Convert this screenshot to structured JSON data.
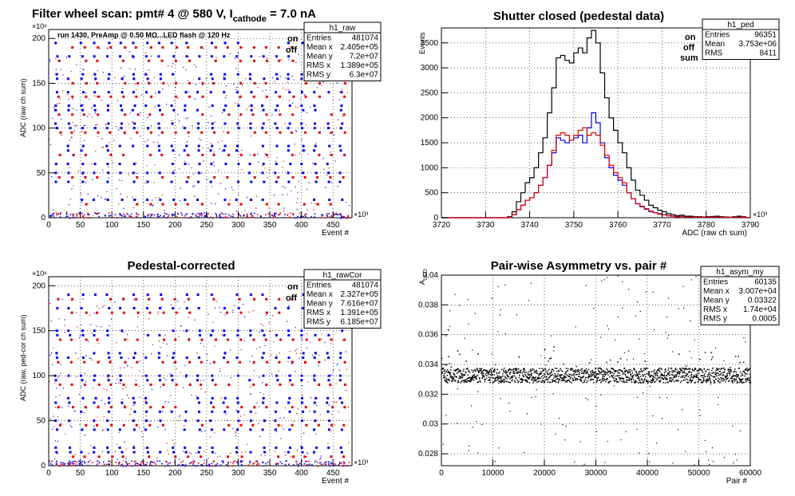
{
  "page_title": "Filter wheel scan: pmt#   4 @   580 V, I",
  "page_title_sub": "cathode",
  "page_title_tail": " = 7.0 nA",
  "colors": {
    "on": "#0000ee",
    "off": "#e00000",
    "sum": "#000000"
  },
  "panels": {
    "raw": {
      "title": "",
      "stats_name": "h1_raw",
      "stats": [
        [
          "Entries",
          "481074"
        ],
        [
          "Mean x",
          "2.405e+05"
        ],
        [
          "Mean y",
          "7.2e+07"
        ],
        [
          "RMS x",
          "1.389e+05"
        ],
        [
          "RMS y",
          "6.3e+07"
        ]
      ],
      "note": "run 1430, PreAmp @ 0.50 MΩ...LED flash @  120 Hz",
      "legend": [
        "on",
        "off"
      ],
      "xlabel": "Event #",
      "ylabel": "ADC (raw ch sum)",
      "x_exp": "×10³",
      "y_exp": "×10⁶"
    },
    "ped": {
      "title": "Shutter closed (pedestal data)",
      "stats_name": "h1_ped",
      "stats": [
        [
          "Entries",
          "96351"
        ],
        [
          "Mean",
          "3.753e+06"
        ],
        [
          "RMS",
          "8411"
        ]
      ],
      "legend": [
        "on",
        "off",
        "sum"
      ],
      "xlabel": "ADC (raw ch sum)",
      "ylabel": "Events",
      "x_exp": "×10³"
    },
    "cor": {
      "title": "Pedestal-corrected",
      "stats_name": "h1_rawCor",
      "stats": [
        [
          "Entries",
          "481074"
        ],
        [
          "Mean x",
          "2.327e+05"
        ],
        [
          "Mean y",
          "7.616e+07"
        ],
        [
          "RMS x",
          "1.391e+05"
        ],
        [
          "RMS y",
          "6.185e+07"
        ]
      ],
      "legend": [
        "on",
        "off"
      ],
      "xlabel": "Event #",
      "ylabel": "ADC (raw, ped-cor ch sum)",
      "x_exp": "×10³",
      "y_exp": "×10⁶"
    },
    "asym": {
      "title": "Pair-wise Asymmetry vs. pair #",
      "stats_name": "h1_asym_my",
      "stats": [
        [
          "Entries",
          "60135"
        ],
        [
          "Mean x",
          "3.007e+04"
        ],
        [
          "Mean y",
          "0.03322"
        ],
        [
          "RMS x",
          "1.74e+04"
        ],
        [
          "RMS y",
          "0.0005"
        ]
      ],
      "xlabel": "Pair #",
      "ylabel": "A",
      "ylabel_sub": "LED"
    }
  },
  "chart_data": [
    {
      "id": "raw",
      "type": "scatter",
      "xlim": [
        0,
        480
      ],
      "ylim": [
        0,
        210
      ],
      "xticks": [
        0,
        50,
        100,
        150,
        200,
        250,
        300,
        350,
        400,
        450
      ],
      "yticks": [
        0,
        50,
        100,
        150,
        200
      ],
      "levels_on": [
        195,
        180,
        160,
        155,
        140,
        125,
        120,
        105,
        100,
        80,
        75,
        60,
        50,
        40,
        20
      ],
      "levels_off": [
        190,
        175,
        150,
        135,
        115,
        95,
        70,
        45,
        15
      ],
      "grid": true
    },
    {
      "id": "ped",
      "type": "line",
      "xlim": [
        3720,
        3790
      ],
      "ylim": [
        0,
        3800
      ],
      "xticks": [
        3720,
        3730,
        3740,
        3750,
        3760,
        3770,
        3780,
        3790
      ],
      "yticks": [
        0,
        500,
        1000,
        1500,
        2000,
        2500,
        3000,
        3500
      ],
      "bins_x": [
        3735,
        3736,
        3737,
        3738,
        3739,
        3740,
        3741,
        3742,
        3743,
        3744,
        3745,
        3746,
        3747,
        3748,
        3749,
        3750,
        3751,
        3752,
        3753,
        3754,
        3755,
        3756,
        3757,
        3758,
        3759,
        3760,
        3761,
        3762,
        3763,
        3764,
        3765,
        3766,
        3767,
        3768,
        3769,
        3770,
        3771,
        3772,
        3773,
        3774,
        3775,
        3776,
        3777,
        3778,
        3779,
        3780,
        3781,
        3782,
        3783,
        3784,
        3785,
        3786,
        3787,
        3788
      ],
      "series": [
        {
          "name": "sum",
          "values": [
            20,
            120,
            320,
            500,
            700,
            800,
            1000,
            1300,
            1600,
            2100,
            2600,
            3200,
            3250,
            3150,
            3100,
            3300,
            3400,
            3300,
            3600,
            3750,
            3500,
            2900,
            2400,
            2000,
            1750,
            1500,
            1300,
            1000,
            750,
            550,
            450,
            350,
            250,
            200,
            150,
            120,
            80,
            60,
            40,
            50,
            30,
            30,
            20,
            20,
            15,
            20,
            25,
            30,
            20,
            15,
            10,
            20,
            30,
            20
          ]
        },
        {
          "name": "on",
          "values": [
            10,
            60,
            160,
            250,
            350,
            400,
            500,
            650,
            800,
            1050,
            1300,
            1600,
            1550,
            1500,
            1550,
            1600,
            1650,
            1500,
            1800,
            2100,
            1900,
            1500,
            1200,
            1000,
            850,
            750,
            650,
            500,
            380,
            280,
            220,
            170,
            120,
            100,
            80,
            60,
            40,
            30,
            20,
            25,
            15,
            15,
            10,
            10,
            8,
            10,
            12,
            15,
            10,
            8,
            5,
            10,
            15,
            10
          ]
        },
        {
          "name": "off",
          "values": [
            10,
            60,
            160,
            250,
            350,
            400,
            500,
            650,
            800,
            1050,
            1350,
            1650,
            1700,
            1650,
            1550,
            1650,
            1750,
            1800,
            1650,
            1700,
            1650,
            1450,
            1250,
            1050,
            900,
            800,
            700,
            500,
            380,
            280,
            230,
            180,
            130,
            100,
            70,
            60,
            40,
            30,
            20,
            25,
            15,
            15,
            10,
            10,
            8,
            10,
            12,
            15,
            10,
            8,
            5,
            10,
            15,
            10
          ]
        }
      ],
      "grid": true
    },
    {
      "id": "cor",
      "type": "scatter",
      "xlim": [
        0,
        480
      ],
      "ylim": [
        0,
        210
      ],
      "xticks": [
        0,
        50,
        100,
        150,
        200,
        250,
        300,
        350,
        400,
        450
      ],
      "yticks": [
        0,
        50,
        100,
        150,
        200
      ],
      "levels_on": [
        190,
        175,
        150,
        145,
        125,
        120,
        100,
        95,
        75,
        70,
        60,
        50,
        40,
        20,
        15
      ],
      "levels_off": [
        185,
        170,
        140,
        115,
        90,
        65,
        45,
        10
      ],
      "grid": true
    },
    {
      "id": "asym",
      "type": "scatter",
      "xlim": [
        0,
        60000
      ],
      "ylim": [
        0.0272,
        0.04
      ],
      "xticks": [
        0,
        10000,
        20000,
        30000,
        40000,
        50000,
        60000
      ],
      "yticks": [
        0.028,
        0.03,
        0.032,
        0.034,
        0.036,
        0.038,
        0.04
      ],
      "band_center": 0.0333,
      "band_halfwidth": 0.0005,
      "grid": true
    }
  ]
}
